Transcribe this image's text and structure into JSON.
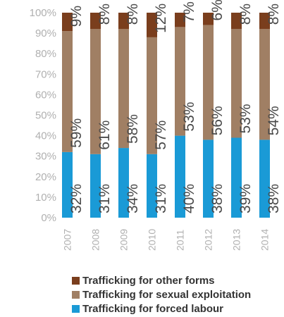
{
  "chart_data": {
    "type": "bar",
    "stacked": true,
    "orientation": "vertical",
    "categories": [
      "2007",
      "2008",
      "2009",
      "2010",
      "2011",
      "2012",
      "2013",
      "2014"
    ],
    "series": [
      {
        "name": "Trafficking for forced labour",
        "color": "#1a9ad6",
        "values": [
          32,
          31,
          34,
          31,
          40,
          38,
          39,
          38
        ],
        "labels": [
          "32%",
          "31%",
          "34%",
          "31%",
          "40%",
          "38%",
          "39%",
          "38%"
        ]
      },
      {
        "name": "Trafficking for sexual exploitation",
        "color": "#a07f64",
        "values": [
          59,
          61,
          58,
          57,
          53,
          56,
          53,
          54
        ],
        "labels": [
          "59%",
          "61%",
          "58%",
          "57%",
          "53%",
          "56%",
          "53%",
          "54%"
        ]
      },
      {
        "name": "Trafficking for other forms",
        "color": "#7a3e1d",
        "values": [
          9,
          8,
          8,
          12,
          7,
          6,
          8,
          8
        ],
        "labels": [
          "9%",
          "8%",
          "8%",
          "12%",
          "7%",
          "6%",
          "8%",
          "8%"
        ]
      }
    ],
    "y_ticks": [
      "0%",
      "10%",
      "20%",
      "30%",
      "40%",
      "50%",
      "60%",
      "70%",
      "80%",
      "90%",
      "100%"
    ],
    "ylim": [
      0,
      100
    ],
    "grid": false,
    "legend_position": "bottom",
    "legend_order": [
      "Trafficking for other forms",
      "Trafficking for sexual exploitation",
      "Trafficking for forced labour"
    ],
    "title": "",
    "xlabel": "",
    "ylabel": ""
  }
}
